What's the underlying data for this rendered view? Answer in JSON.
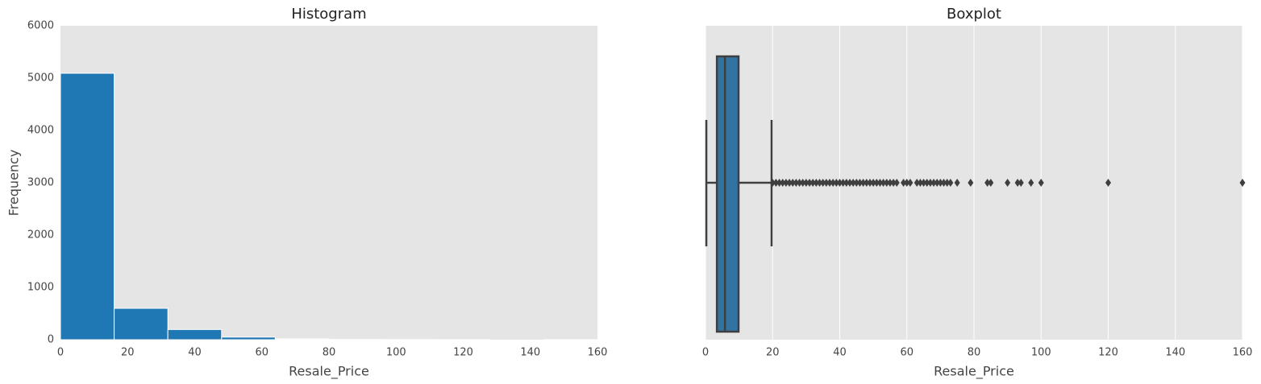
{
  "chart_data": [
    {
      "type": "histogram",
      "title": "Histogram",
      "xlabel": "Resale_Price",
      "ylabel": "Frequency",
      "bins": [
        0,
        16,
        32,
        48,
        64,
        80,
        96,
        112,
        128,
        144,
        160
      ],
      "values": [
        5092,
        600,
        195,
        50,
        15,
        6,
        3,
        1,
        0,
        1
      ],
      "color": "#1f77b4",
      "xlim": [
        0,
        160
      ],
      "xticks": [
        0,
        20,
        40,
        60,
        80,
        100,
        120,
        140,
        160
      ],
      "ylim": [
        0,
        6000
      ],
      "yticks": [
        0,
        1000,
        2000,
        3000,
        4000,
        5000,
        6000
      ],
      "grid": false
    },
    {
      "type": "box",
      "title": "Boxplot",
      "xlabel": "Resale_Price",
      "whisker_low": 0.25,
      "q1": 3.4,
      "median": 5.8,
      "q3": 9.85,
      "whisker_high": 19.7,
      "outliers": [
        20,
        21,
        22,
        23,
        24,
        25,
        26,
        27,
        28,
        29,
        30,
        31,
        32,
        33,
        34,
        35,
        36,
        37,
        38,
        39,
        40,
        41,
        42,
        43,
        44,
        45,
        46,
        47,
        48,
        49,
        50,
        51,
        52,
        53,
        54,
        55,
        56,
        57,
        59,
        60,
        61,
        63,
        64,
        65,
        66,
        67,
        68,
        69,
        70,
        71,
        72,
        73,
        75,
        79,
        84,
        85,
        90,
        93,
        94,
        97,
        100,
        120,
        160
      ],
      "color": "#3274a1",
      "edgecolor": "#3f3f3f",
      "xlim": [
        0,
        160
      ],
      "xticks": [
        0,
        20,
        40,
        60,
        80,
        100,
        120,
        140,
        160
      ],
      "grid": true
    }
  ]
}
